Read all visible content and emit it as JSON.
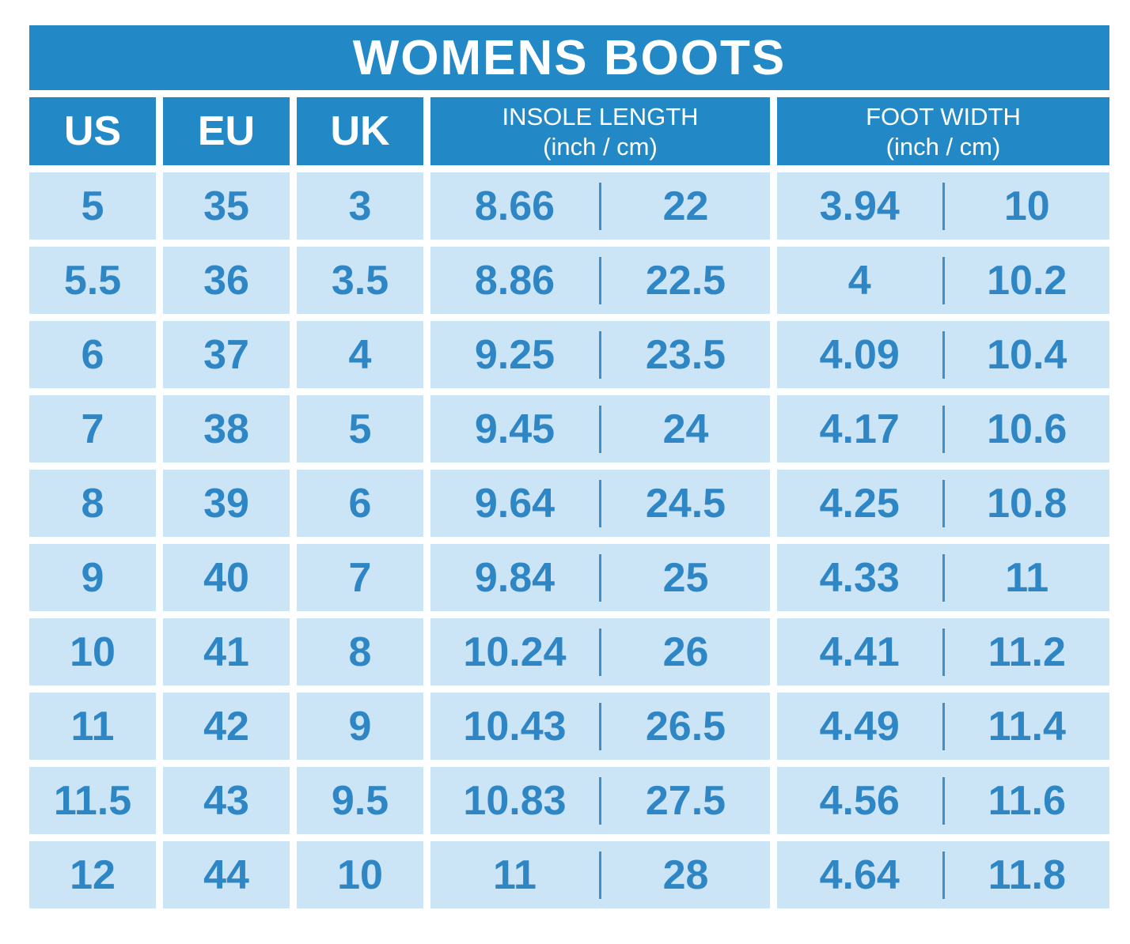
{
  "chart_data": {
    "type": "table",
    "title": "WOMENS BOOTS",
    "column_headers": {
      "us": "US",
      "eu": "EU",
      "uk": "UK",
      "insole_title": "INSOLE LENGTH",
      "insole_sub": "(inch / cm)",
      "foot_title": "FOOT WIDTH",
      "foot_sub": "(inch / cm)"
    },
    "rows": [
      {
        "us": "5",
        "eu": "35",
        "uk": "3",
        "insole_inch": "8.66",
        "insole_cm": "22",
        "foot_inch": "3.94",
        "foot_cm": "10"
      },
      {
        "us": "5.5",
        "eu": "36",
        "uk": "3.5",
        "insole_inch": "8.86",
        "insole_cm": "22.5",
        "foot_inch": "4",
        "foot_cm": "10.2"
      },
      {
        "us": "6",
        "eu": "37",
        "uk": "4",
        "insole_inch": "9.25",
        "insole_cm": "23.5",
        "foot_inch": "4.09",
        "foot_cm": "10.4"
      },
      {
        "us": "7",
        "eu": "38",
        "uk": "5",
        "insole_inch": "9.45",
        "insole_cm": "24",
        "foot_inch": "4.17",
        "foot_cm": "10.6"
      },
      {
        "us": "8",
        "eu": "39",
        "uk": "6",
        "insole_inch": "9.64",
        "insole_cm": "24.5",
        "foot_inch": "4.25",
        "foot_cm": "10.8"
      },
      {
        "us": "9",
        "eu": "40",
        "uk": "7",
        "insole_inch": "9.84",
        "insole_cm": "25",
        "foot_inch": "4.33",
        "foot_cm": "11"
      },
      {
        "us": "10",
        "eu": "41",
        "uk": "8",
        "insole_inch": "10.24",
        "insole_cm": "26",
        "foot_inch": "4.41",
        "foot_cm": "11.2"
      },
      {
        "us": "11",
        "eu": "42",
        "uk": "9",
        "insole_inch": "10.43",
        "insole_cm": "26.5",
        "foot_inch": "4.49",
        "foot_cm": "11.4"
      },
      {
        "us": "11.5",
        "eu": "43",
        "uk": "9.5",
        "insole_inch": "10.83",
        "insole_cm": "27.5",
        "foot_inch": "4.56",
        "foot_cm": "11.6"
      },
      {
        "us": "12",
        "eu": "44",
        "uk": "10",
        "insole_inch": "11",
        "insole_cm": "28",
        "foot_inch": "4.64",
        "foot_cm": "11.8"
      }
    ]
  },
  "colors": {
    "header_blue": "#2389c6",
    "light_cell": "#cbe4f6",
    "value_blue": "#2e86c4",
    "background": "#ffffff",
    "title_text": "#ffffff"
  }
}
